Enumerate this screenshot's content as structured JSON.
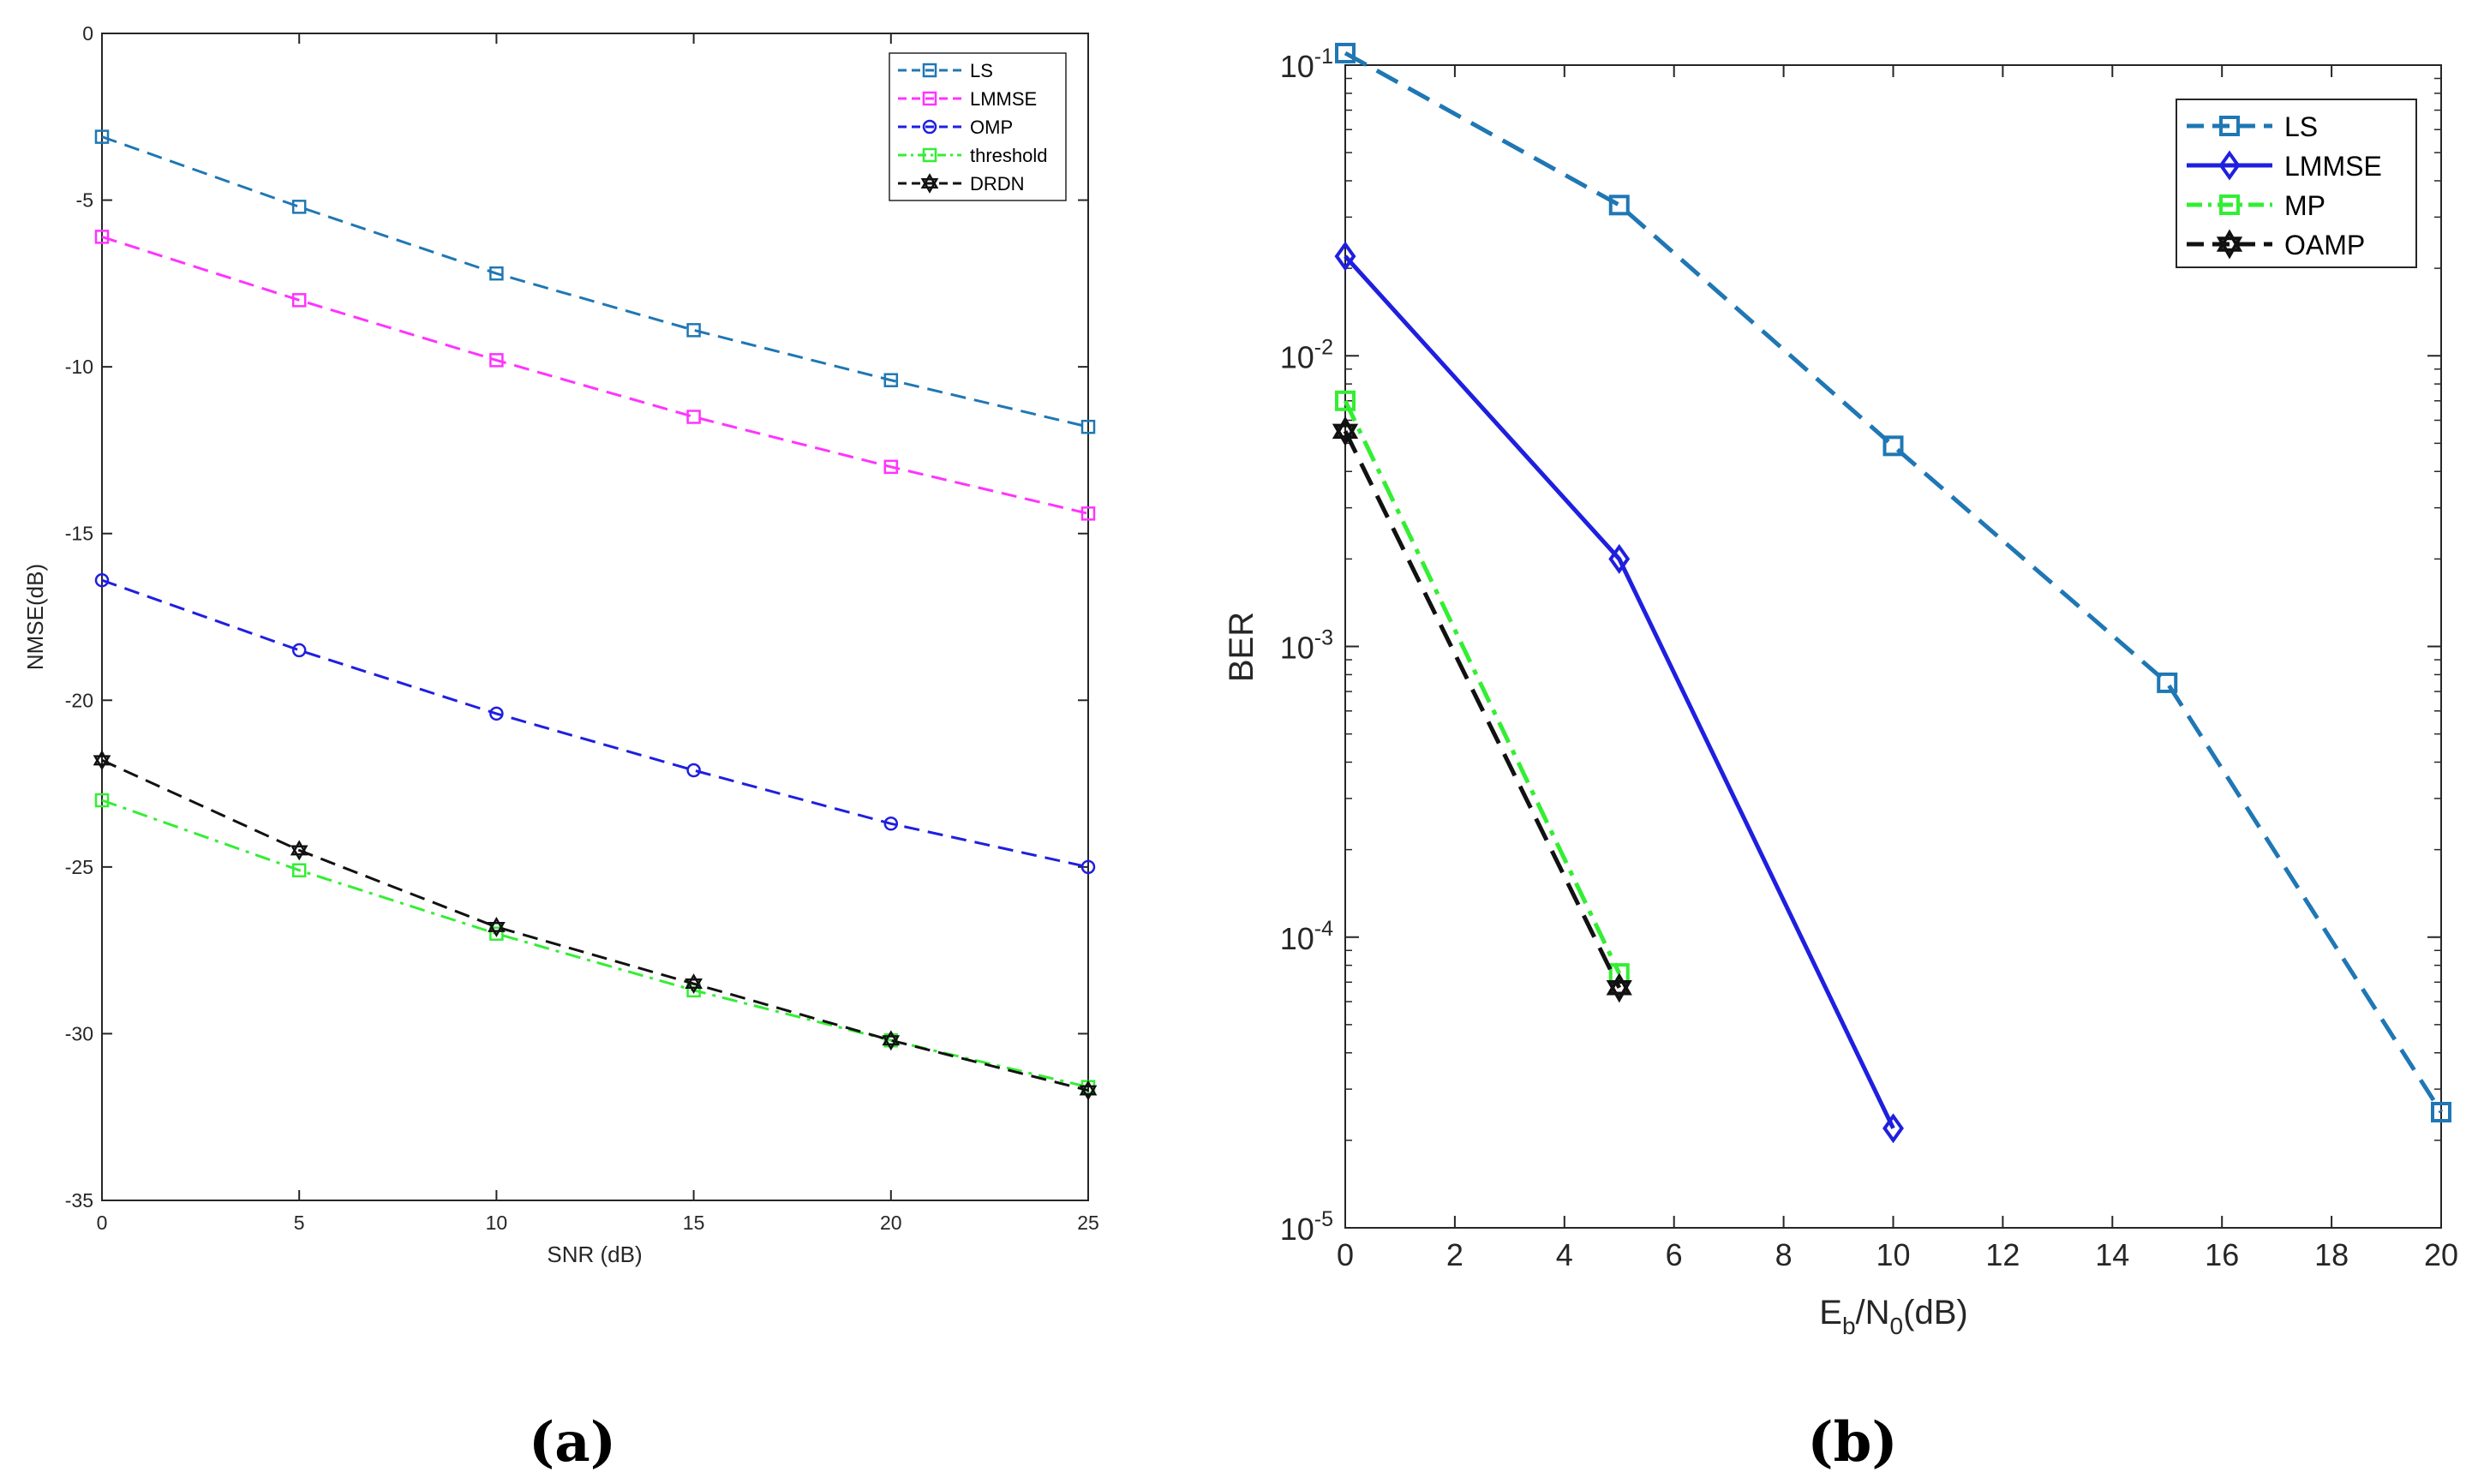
{
  "chart_data": [
    {
      "type": "line",
      "panel_label": "(a)",
      "xlabel": "SNR (dB)",
      "ylabel": "NMSE(dB)",
      "xlim": [
        0,
        25
      ],
      "ylim": [
        -35,
        0
      ],
      "xticks": [
        0,
        5,
        10,
        15,
        20,
        25
      ],
      "yticks": [
        0,
        -5,
        -10,
        -15,
        -20,
        -25,
        -30,
        -35
      ],
      "grid": false,
      "legend_position": "top-right",
      "x": [
        0,
        5,
        10,
        15,
        20,
        25
      ],
      "series": [
        {
          "name": "LS",
          "color": "#1f77b4",
          "dash": "dashed",
          "marker": "square",
          "values": [
            -3.1,
            -5.2,
            -7.2,
            -8.9,
            -10.4,
            -11.8
          ]
        },
        {
          "name": "LMMSE",
          "color": "#ff33ff",
          "dash": "dashed",
          "marker": "square",
          "values": [
            -6.1,
            -8.0,
            -9.8,
            -11.5,
            -13.0,
            -14.4
          ]
        },
        {
          "name": "OMP",
          "color": "#1f1fe0",
          "dash": "dashed",
          "marker": "circle",
          "values": [
            -16.4,
            -18.5,
            -20.4,
            -22.1,
            -23.7,
            -25.0
          ]
        },
        {
          "name": "threshold",
          "color": "#33ee33",
          "dash": "dashdot",
          "marker": "square",
          "values": [
            -23.0,
            -25.1,
            -27.0,
            -28.7,
            -30.2,
            -31.6
          ]
        },
        {
          "name": "DRDN",
          "color": "#111111",
          "dash": "dashed",
          "marker": "hexagram",
          "values": [
            -21.8,
            -24.5,
            -26.8,
            -28.5,
            -30.2,
            -31.7
          ]
        }
      ]
    },
    {
      "type": "line",
      "panel_label": "(b)",
      "xlabel": "E_b/N_0(dB)",
      "ylabel": "BER",
      "yscale": "log",
      "xlim": [
        0,
        20
      ],
      "ylim": [
        1e-05,
        0.1
      ],
      "xticks": [
        0,
        2,
        4,
        6,
        8,
        10,
        12,
        14,
        16,
        18,
        20
      ],
      "yticks": [
        {
          "base": "10",
          "exp": "-1",
          "value": 0.1
        },
        {
          "base": "10",
          "exp": "-2",
          "value": 0.01
        },
        {
          "base": "10",
          "exp": "-3",
          "value": 0.001
        },
        {
          "base": "10",
          "exp": "-4",
          "value": 0.0001
        },
        {
          "base": "10",
          "exp": "-5",
          "value": 1e-05
        }
      ],
      "grid": false,
      "legend_position": "top-right",
      "series": [
        {
          "name": "LS",
          "color": "#1f77b4",
          "dash": "dashed",
          "marker": "square",
          "x": [
            0,
            5,
            10,
            15,
            20
          ],
          "values": [
            0.11,
            0.033,
            0.0049,
            0.00075,
            2.5e-05
          ]
        },
        {
          "name": "LMMSE",
          "color": "#1f1fe0",
          "dash": "solid",
          "marker": "diamond",
          "x": [
            0,
            5,
            10
          ],
          "values": [
            0.022,
            0.002,
            2.2e-05
          ]
        },
        {
          "name": "MP",
          "color": "#33ee33",
          "dash": "dashdot",
          "marker": "square",
          "x": [
            0,
            5
          ],
          "values": [
            0.007,
            7.5e-05
          ]
        },
        {
          "name": "OAMP",
          "color": "#111111",
          "dash": "dashed",
          "marker": "hexagram",
          "x": [
            0,
            5
          ],
          "values": [
            0.0055,
            6.7e-05
          ]
        }
      ]
    }
  ]
}
